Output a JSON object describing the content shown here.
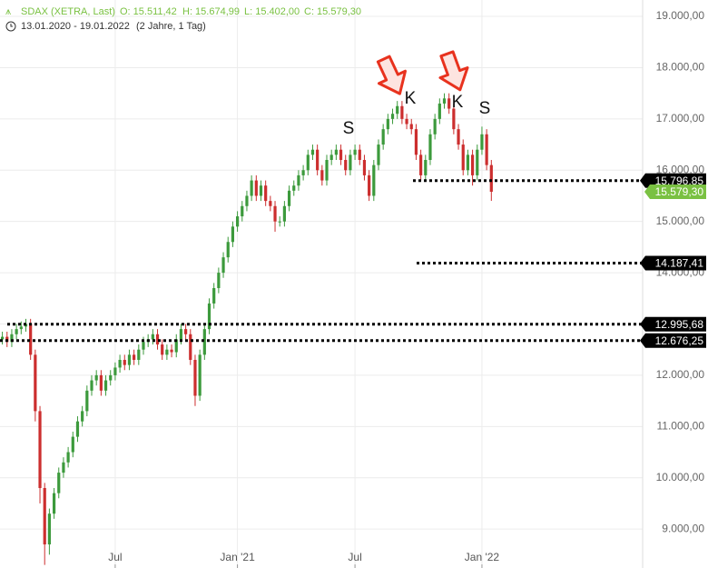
{
  "header": {
    "symbol": "SDAX (XETRA, Last)",
    "open": "O: 15.511,42",
    "high": "H: 15.674,99",
    "low": "L: 15.402,00",
    "close": "C: 15.579,30",
    "range": "13.01.2020 - 19.01.2022",
    "span": "(2 Jahre, 1 Tag)"
  },
  "chart_data": {
    "type": "candlestick",
    "categories": [
      null,
      null,
      null,
      null,
      null,
      null,
      null,
      null,
      null,
      null,
      null,
      null,
      null,
      null,
      null,
      null,
      null,
      null,
      null,
      null,
      null,
      null,
      null,
      null,
      "Jul",
      null,
      null,
      null,
      null,
      null,
      null,
      null,
      null,
      null,
      null,
      null,
      null,
      null,
      null,
      null,
      null,
      null,
      null,
      null,
      null,
      null,
      null,
      null,
      null,
      null,
      "Jan '21",
      null,
      null,
      null,
      null,
      null,
      null,
      null,
      null,
      null,
      null,
      null,
      null,
      null,
      null,
      null,
      null,
      null,
      null,
      null,
      null,
      null,
      null,
      null,
      null,
      "Jul",
      null,
      null,
      null,
      null,
      null,
      null,
      null,
      null,
      null,
      null,
      null,
      null,
      null,
      null,
      null,
      null,
      null,
      null,
      null,
      null,
      null,
      null,
      null,
      null,
      null,
      null,
      "Jan '22",
      null,
      null
    ],
    "open": [
      12700,
      12750,
      12650,
      12800,
      12900,
      12950,
      13000,
      12400,
      11300,
      9800,
      8700,
      9300,
      9700,
      10100,
      10300,
      10500,
      10800,
      11100,
      11300,
      11700,
      11900,
      12000,
      11700,
      11900,
      12000,
      12150,
      12300,
      12200,
      12400,
      12300,
      12500,
      12650,
      12700,
      12800,
      12600,
      12400,
      12500,
      12450,
      12700,
      12900,
      12800,
      12300,
      11600,
      12400,
      12900,
      13400,
      13700,
      14000,
      14300,
      14600,
      14900,
      15100,
      15300,
      15500,
      15800,
      15500,
      15700,
      15400,
      15300,
      15000,
      15000,
      15300,
      15600,
      15700,
      15900,
      16000,
      16300,
      16400,
      16000,
      15800,
      16200,
      16300,
      16400,
      16200,
      16000,
      16300,
      16400,
      16200,
      15900,
      15500,
      16100,
      16500,
      16800,
      17000,
      17100,
      17250,
      17000,
      16900,
      16800,
      16300,
      15900,
      16200,
      16700,
      17000,
      17300,
      17400,
      17200,
      16800,
      16500,
      16000,
      16300,
      15900,
      16400,
      16700,
      16100
    ],
    "high": [
      12850,
      12850,
      12900,
      13000,
      13050,
      13100,
      13100,
      12500,
      11400,
      9900,
      9400,
      9800,
      10200,
      10400,
      10600,
      10900,
      11200,
      11400,
      11800,
      12000,
      12100,
      12100,
      12000,
      12100,
      12250,
      12400,
      12400,
      12500,
      12500,
      12600,
      12750,
      12800,
      12900,
      12900,
      12700,
      12600,
      12600,
      12800,
      13000,
      13000,
      12900,
      12400,
      12500,
      13000,
      13500,
      13800,
      14100,
      14400,
      14700,
      15000,
      15200,
      15400,
      15600,
      15900,
      15900,
      15800,
      15800,
      15500,
      15400,
      15100,
      15400,
      15700,
      15800,
      16000,
      16100,
      16400,
      16500,
      16500,
      16100,
      16300,
      16400,
      16500,
      16500,
      16300,
      16400,
      16500,
      16500,
      16300,
      16000,
      16200,
      16600,
      16900,
      17100,
      17200,
      17350,
      17350,
      17100,
      17000,
      16900,
      16400,
      16300,
      16800,
      17100,
      17400,
      17500,
      17500,
      17300,
      16900,
      16600,
      16400,
      16400,
      16500,
      16850,
      16800,
      16200
    ],
    "low": [
      12600,
      12550,
      12550,
      12700,
      12800,
      12850,
      12300,
      11100,
      9500,
      8300,
      8500,
      9200,
      9600,
      10000,
      10200,
      10400,
      10700,
      11000,
      11200,
      11600,
      11800,
      11600,
      11600,
      11800,
      11900,
      12050,
      12100,
      12100,
      12200,
      12200,
      12400,
      12550,
      12600,
      12500,
      12300,
      12300,
      12350,
      12350,
      12600,
      12700,
      12200,
      11400,
      11500,
      12300,
      12800,
      13300,
      13600,
      13900,
      14200,
      14500,
      14800,
      15000,
      15200,
      15400,
      15400,
      15400,
      15300,
      15200,
      14800,
      14900,
      14900,
      15200,
      15500,
      15600,
      15800,
      15900,
      16200,
      15900,
      15700,
      15700,
      16100,
      16200,
      16100,
      15900,
      15900,
      16200,
      16100,
      15800,
      15400,
      15400,
      16000,
      16400,
      16700,
      16900,
      17000,
      16900,
      16800,
      16700,
      16200,
      15800,
      15800,
      16100,
      16600,
      16900,
      17200,
      17100,
      16700,
      16400,
      15900,
      15900,
      15700,
      15800,
      16300,
      16000,
      15402
    ],
    "close": [
      12750,
      12650,
      12800,
      12900,
      12950,
      13000,
      12400,
      11300,
      9800,
      8700,
      9300,
      9700,
      10100,
      10300,
      10500,
      10800,
      11100,
      11300,
      11700,
      11900,
      12000,
      11700,
      11900,
      12000,
      12150,
      12300,
      12200,
      12400,
      12300,
      12500,
      12650,
      12700,
      12800,
      12600,
      12400,
      12500,
      12450,
      12700,
      12900,
      12800,
      12300,
      11600,
      12400,
      12900,
      13400,
      13700,
      14000,
      14300,
      14600,
      14900,
      15100,
      15300,
      15500,
      15800,
      15500,
      15700,
      15400,
      15300,
      15000,
      15000,
      15300,
      15600,
      15700,
      15900,
      16000,
      16300,
      16400,
      16000,
      15800,
      16200,
      16300,
      16400,
      16200,
      16000,
      16300,
      16400,
      16200,
      15900,
      15500,
      16100,
      16500,
      16800,
      17000,
      17100,
      17250,
      17000,
      16900,
      16800,
      16300,
      15900,
      16200,
      16700,
      17000,
      17300,
      17400,
      17200,
      16800,
      16500,
      16000,
      16300,
      15900,
      16400,
      16700,
      16100,
      15579.3
    ],
    "up_color": "#3c9a3c",
    "down_color": "#cc2e2e",
    "ylim": [
      8240,
      19320
    ],
    "yticks": [
      {
        "value": 9000,
        "label": "9.000,00"
      },
      {
        "value": 10000,
        "label": "10.000,00"
      },
      {
        "value": 11000,
        "label": "11.000,00"
      },
      {
        "value": 12000,
        "label": "12.000,00"
      },
      {
        "value": 13000,
        "label": "13.000,00"
      },
      {
        "value": 14000,
        "label": "14.000,00"
      },
      {
        "value": 15000,
        "label": "15.000,00"
      },
      {
        "value": 16000,
        "label": "16.000,00"
      },
      {
        "value": 17000,
        "label": "17.000,00"
      },
      {
        "value": 18000,
        "label": "18.000,00"
      },
      {
        "value": 19000,
        "label": "19.000,00"
      }
    ],
    "grid": true,
    "levels": [
      {
        "value": 15796.85,
        "label": "15.796,85"
      },
      {
        "value": 14187.41,
        "label": "14.187,41"
      },
      {
        "value": 12995.68,
        "label": "12.995,68"
      },
      {
        "value": 12676.25,
        "label": "12.676,25"
      }
    ],
    "last_price": {
      "value": 15579.3,
      "label": "15.579,30"
    },
    "last_color": "#7ac142",
    "annotations": [
      "S",
      "K",
      "K",
      "S"
    ]
  }
}
